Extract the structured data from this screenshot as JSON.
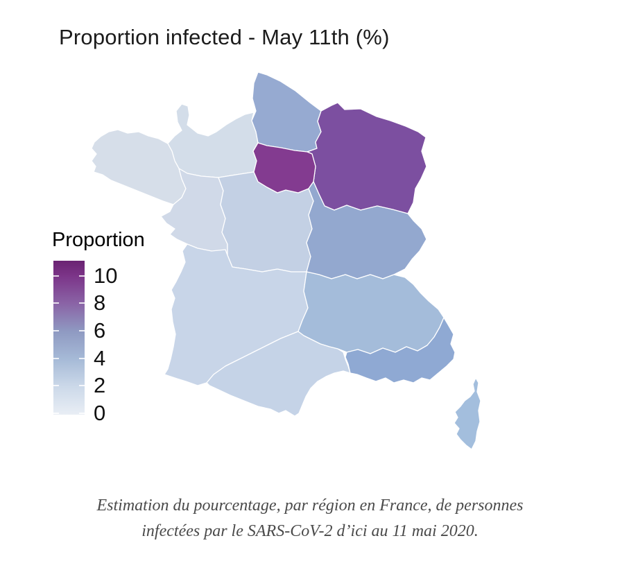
{
  "figure": {
    "title": "Proportion infected - May 11th (%)",
    "caption_lines": [
      "Estimation du pourcentage, par région en France, de personnes",
      "infectées par le SARS-CoV-2 d’ici au 11 mai 2020."
    ]
  },
  "legend": {
    "title": "Proportion",
    "ticks": [
      10,
      8,
      6,
      4,
      2,
      0
    ],
    "domain": [
      -0.1,
      11.1
    ],
    "gradient_stops": [
      "#e9eef5 0%",
      "#ccd9e9 18%",
      "#a6bad7 36%",
      "#8f9ac2 54%",
      "#8a64a6 72%",
      "#7c3589 90%",
      "#6a2372 100%"
    ]
  },
  "chart_data": {
    "type": "choropleth",
    "title": "Proportion infected - May 11th (%)",
    "unit": "%",
    "legend_title": "Proportion",
    "scale_range": [
      0,
      11
    ],
    "regions": [
      {
        "slug": "idf",
        "name": "Île-de-France",
        "value": 10.1,
        "color": "#833b90"
      },
      {
        "slug": "ge",
        "name": "Grand Est",
        "value": 9.2,
        "color": "#7c4fa0"
      },
      {
        "slug": "bfc",
        "name": "Bourgogne-Franche-Comté",
        "value": 4.4,
        "color": "#93a8cf"
      },
      {
        "slug": "hdf",
        "name": "Hauts-de-France",
        "value": 4.2,
        "color": "#96aad1"
      },
      {
        "slug": "paca",
        "name": "Provence-Alpes-Côte d’Azur",
        "value": 4.1,
        "color": "#8fa9d3"
      },
      {
        "slug": "cor",
        "name": "Corse",
        "value": 3.1,
        "color": "#a3bedd"
      },
      {
        "slug": "ara",
        "name": "Auvergne-Rhône-Alpes",
        "value": 3.0,
        "color": "#a4bcda"
      },
      {
        "slug": "cvl",
        "name": "Centre-Val de Loire",
        "value": 2.2,
        "color": "#c3d0e4"
      },
      {
        "slug": "occ",
        "name": "Occitanie",
        "value": 1.8,
        "color": "#c5d3e7"
      },
      {
        "slug": "na",
        "name": "Nouvelle-Aquitaine",
        "value": 1.6,
        "color": "#c8d5e8"
      },
      {
        "slug": "pdl",
        "name": "Pays de la Loire",
        "value": 1.3,
        "color": "#d0d9e8"
      },
      {
        "slug": "nor",
        "name": "Normandie",
        "value": 1.2,
        "color": "#d3dde9"
      },
      {
        "slug": "bre",
        "name": "Bretagne",
        "value": 1.0,
        "color": "#d6dee9"
      }
    ]
  }
}
